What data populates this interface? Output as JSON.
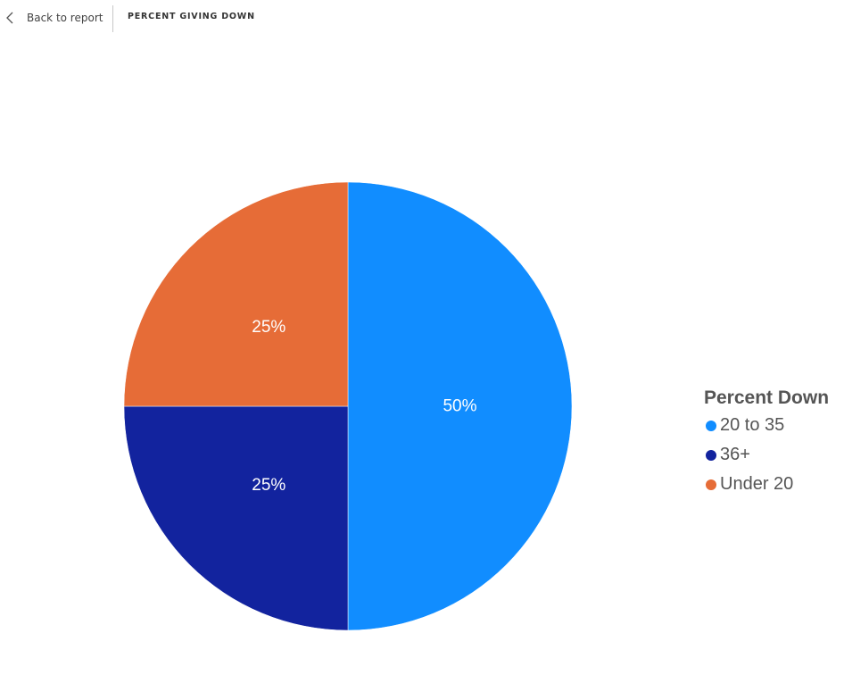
{
  "header": {
    "back_label": "Back to report",
    "title": "PERCENT GIVING DOWN"
  },
  "chart_data": {
    "type": "pie",
    "legend_title": "Percent Down",
    "legend_position": "right",
    "slices": [
      {
        "label": "20 to 35",
        "value": 50,
        "data_label": "50%",
        "color": "#118DFF"
      },
      {
        "label": "36+",
        "value": 25,
        "data_label": "25%",
        "color": "#12239E"
      },
      {
        "label": "Under 20",
        "value": 25,
        "data_label": "25%",
        "color": "#E66C37"
      }
    ]
  }
}
